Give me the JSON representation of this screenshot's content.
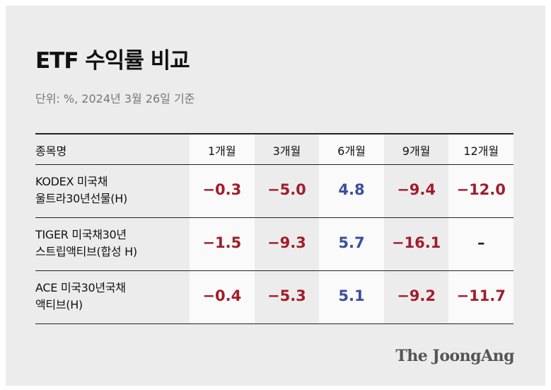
{
  "header": {
    "title": "ETF 수익률 비교",
    "subtitle": "단위: %, 2024년 3월 26일 기준"
  },
  "table": {
    "columns": [
      "종목명",
      "1개월",
      "3개월",
      "6개월",
      "9개월",
      "12개월"
    ],
    "rows": [
      {
        "name": [
          "KODEX 미국채",
          "울트라30년선물(H)"
        ],
        "cells": [
          "−0.3",
          "−5.0",
          "4.8",
          "−9.4",
          "−12.0"
        ]
      },
      {
        "name": [
          "TIGER 미국채30년",
          "스트립액티브(합성 H)"
        ],
        "cells": [
          "−1.5",
          "−9.3",
          "5.7",
          "−16.1",
          "–"
        ]
      },
      {
        "name": [
          "ACE 미국30년국채",
          "액티브(H)"
        ],
        "cells": [
          "−0.4",
          "−5.3",
          "5.1",
          "−9.2",
          "−11.7"
        ]
      }
    ],
    "colors": {
      "negative": "#a11d2b",
      "positive": "#3b4e9d",
      "none": "#222222"
    }
  },
  "footer": {
    "source": "The JoongAng"
  }
}
